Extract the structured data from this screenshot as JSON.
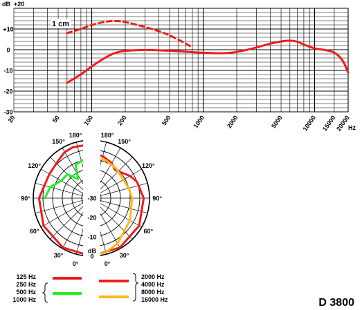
{
  "model": "D 3800",
  "chart_data": [
    {
      "type": "line",
      "x_scale": "log",
      "xlim": [
        20,
        20000
      ],
      "ylim": [
        -30,
        20
      ],
      "y_unit_label": "dB",
      "y_top_label": "+20",
      "y_ticks": [
        {
          "value": 10,
          "label": "+10"
        },
        {
          "value": 0,
          "label": "0"
        },
        {
          "value": -10,
          "label": "-10"
        },
        {
          "value": -20,
          "label": "-20"
        },
        {
          "value": -30,
          "label": "-30"
        }
      ],
      "x_tick_labels": [
        "20",
        "50",
        "100",
        "200",
        "500",
        "1000",
        "2000",
        "5000",
        "10000",
        "15000",
        "20000"
      ],
      "x_unit_label": "Hz",
      "annotation": "1 cm",
      "grid": true,
      "series": [
        {
          "style": "solid",
          "color": "#ee1c1c",
          "x": [
            60,
            80,
            100,
            130,
            160,
            200,
            300,
            500,
            700,
            1000,
            1500,
            2000,
            3000,
            4000,
            5000,
            6000,
            7000,
            8000,
            10000,
            12000,
            15000,
            18000,
            20000
          ],
          "y": [
            -16,
            -12,
            -8,
            -4,
            -1.5,
            -0.5,
            0,
            -0.5,
            -1,
            -1.5,
            -1.8,
            -1.2,
            1,
            3,
            4,
            4.5,
            4,
            2.5,
            0.5,
            0,
            -1,
            -5,
            -11
          ]
        },
        {
          "style": "dashed",
          "color": "#ee1c1c",
          "x": [
            60,
            80,
            100,
            130,
            160,
            200,
            300,
            400,
            500,
            700,
            800
          ],
          "y": [
            8,
            10,
            12,
            13.5,
            14,
            13.5,
            11,
            9,
            7,
            3,
            1
          ]
        }
      ]
    },
    {
      "type": "polar",
      "angle_labels": [
        "0°",
        "30°",
        "60°",
        "90°",
        "120°",
        "150°",
        "180°"
      ],
      "db_ticks": [
        "0",
        "-10",
        "-20",
        "-30"
      ],
      "db_label": "dB",
      "rlim": [
        -30,
        0
      ],
      "series": [
        {
          "color": "#ee1c1c",
          "side": "left",
          "name": "125 Hz / 250 Hz",
          "angles": [
            0,
            30,
            60,
            90,
            120,
            140,
            150,
            160,
            180
          ],
          "db": [
            0,
            -0.5,
            -1.5,
            -3,
            -5,
            -4,
            -2.5,
            -2,
            -2
          ]
        },
        {
          "color": "#22ee22",
          "side": "left",
          "name": "500 Hz / 1000 Hz",
          "angles": [
            90,
            105,
            120,
            135,
            145,
            155,
            165,
            180
          ],
          "db": [
            -6,
            -8,
            -12,
            -12.5,
            -18,
            -11,
            -10,
            -8
          ]
        },
        {
          "color": "#ee1c1c",
          "side": "right",
          "name": "2000 Hz / 4000 Hz",
          "angles": [
            0,
            30,
            60,
            90,
            110,
            120,
            140,
            150,
            165,
            180
          ],
          "db": [
            0,
            -0.5,
            -1.5,
            -3,
            -5,
            -7,
            -11,
            -9,
            -7.5,
            -7
          ]
        },
        {
          "color": "#ffb81c",
          "side": "right",
          "name": "8000 Hz / 16000 Hz",
          "angles": [
            0,
            15,
            30,
            60,
            90,
            105,
            120,
            140,
            160,
            180
          ],
          "db": [
            0,
            -1,
            -3,
            -7,
            -9,
            -10,
            -11,
            -10,
            -9,
            -9
          ]
        }
      ]
    }
  ],
  "legend": {
    "left_freqs": [
      "125 Hz",
      "250 Hz",
      "500 Hz",
      "1000 Hz"
    ],
    "right_freqs": [
      "2000 Hz",
      "4000 Hz",
      "8000 Hz",
      "16000 Hz"
    ],
    "colors": {
      "red": "#ee1c1c",
      "green": "#22ee22",
      "yellow": "#ffb81c"
    }
  }
}
